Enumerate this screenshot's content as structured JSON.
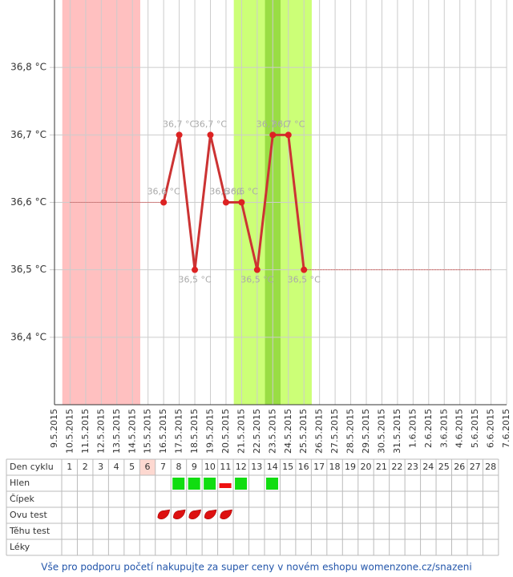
{
  "chart_data": {
    "type": "line",
    "categories": [
      "9.5.2015",
      "10.5.2015",
      "11.5.2015",
      "12.5.2015",
      "13.5.2015",
      "14.5.2015",
      "15.5.2015",
      "16.5.2015",
      "17.5.2015",
      "18.5.2015",
      "19.5.2015",
      "20.5.2015",
      "21.5.2015",
      "22.5.2015",
      "23.5.2015",
      "24.5.2015",
      "25.5.2015",
      "26.5.2015",
      "27.5.2015",
      "28.5.2015",
      "29.5.2015",
      "30.5.2015",
      "31.5.2015",
      "1.6.2015",
      "2.6.2015",
      "3.6.2015",
      "4.6.2015",
      "5.6.2015",
      "6.6.2015",
      "7.6.2015"
    ],
    "series": [
      {
        "color": "#cc3333",
        "values": [
          null,
          null,
          null,
          null,
          null,
          null,
          null,
          36.6,
          36.7,
          36.5,
          36.7,
          36.6,
          36.6,
          36.5,
          36.7,
          36.7,
          36.5,
          null,
          null,
          null,
          null,
          null,
          null,
          null,
          null,
          null,
          null,
          null,
          null,
          null
        ],
        "value_labels": [
          null,
          null,
          null,
          null,
          null,
          null,
          null,
          "36,6 °C",
          "36,7 °C",
          "36,5 °C",
          "36,7 °C",
          "36,6 °C",
          "36,6 °C",
          "36,5 °C",
          "36,7 °C",
          "36,7 °C",
          "36,5 °C",
          null,
          null,
          null,
          null,
          null,
          null,
          null,
          null,
          null,
          null,
          null,
          null,
          null
        ]
      },
      {
        "color": "#cc3333",
        "style": "dotted",
        "values": [
          null,
          36.6,
          36.6,
          36.6,
          36.6,
          36.6,
          36.6,
          36.6,
          null,
          null,
          null,
          null,
          null,
          null,
          null,
          null,
          null,
          null,
          null,
          null,
          null,
          null,
          null,
          null,
          null,
          null,
          null,
          null,
          null,
          null
        ]
      },
      {
        "color": "#cc3333",
        "style": "dotted",
        "values": [
          null,
          null,
          null,
          null,
          null,
          null,
          null,
          null,
          null,
          null,
          null,
          null,
          null,
          null,
          null,
          null,
          36.5,
          36.5,
          36.5,
          36.5,
          36.5,
          36.5,
          36.5,
          36.5,
          36.5,
          36.5,
          36.5,
          36.5,
          36.5,
          null
        ]
      }
    ],
    "bands": [
      {
        "from": "10.5.2015",
        "to": "14.5.2015",
        "color": "#ffc0c0"
      },
      {
        "from": "21.5.2015",
        "to": "25.5.2015",
        "color": "#ccff77"
      },
      {
        "from": "23.5.2015",
        "to": "23.5.2015",
        "color": "#99dd44"
      }
    ],
    "ylim": [
      36.3,
      36.9
    ],
    "yticks": [
      {
        "value": 36.4,
        "label": "36,4 °C"
      },
      {
        "value": 36.5,
        "label": "36,5 °C"
      },
      {
        "value": 36.6,
        "label": "36,6 °C"
      },
      {
        "value": 36.7,
        "label": "36,7 °C"
      },
      {
        "value": 36.8,
        "label": "36,8 °C"
      }
    ],
    "grid": true
  },
  "table": {
    "header": "Den cyklu",
    "days": [
      "1",
      "2",
      "3",
      "4",
      "5",
      "6",
      "7",
      "8",
      "9",
      "10",
      "11",
      "12",
      "13",
      "14",
      "15",
      "16",
      "17",
      "18",
      "19",
      "20",
      "21",
      "22",
      "23",
      "24",
      "25",
      "26",
      "27",
      "28"
    ],
    "highlight_day": "6",
    "rows": [
      "Hlen",
      "Čípek",
      "Ovu test",
      "Těhu test",
      "Léky"
    ]
  },
  "footer": "Vše pro podporu početí nakupujte za super ceny v novém eshopu womenzone.cz/snazeni"
}
